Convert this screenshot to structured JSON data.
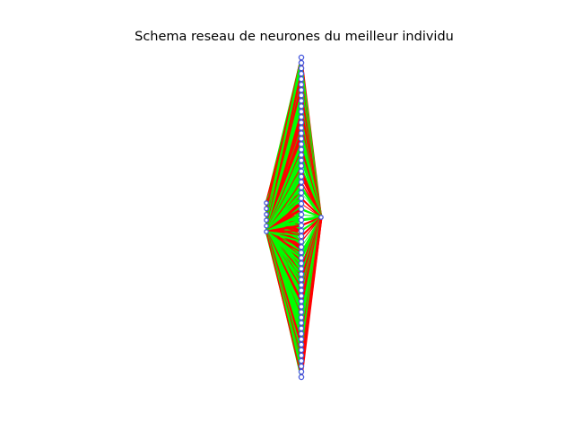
{
  "figure": {
    "title": "Schema reseau de neurones du meilleur individu"
  },
  "network": {
    "layers": [
      {
        "name": "input",
        "neurons": 6
      },
      {
        "name": "hidden",
        "neurons": 60
      },
      {
        "name": "output",
        "neurons": 1
      }
    ],
    "colors": {
      "positive_weight": "#00ff00",
      "negative_weight": "#ff0000",
      "neuron_edge": "#4455dd",
      "neuron_face": "#ffffff"
    }
  }
}
